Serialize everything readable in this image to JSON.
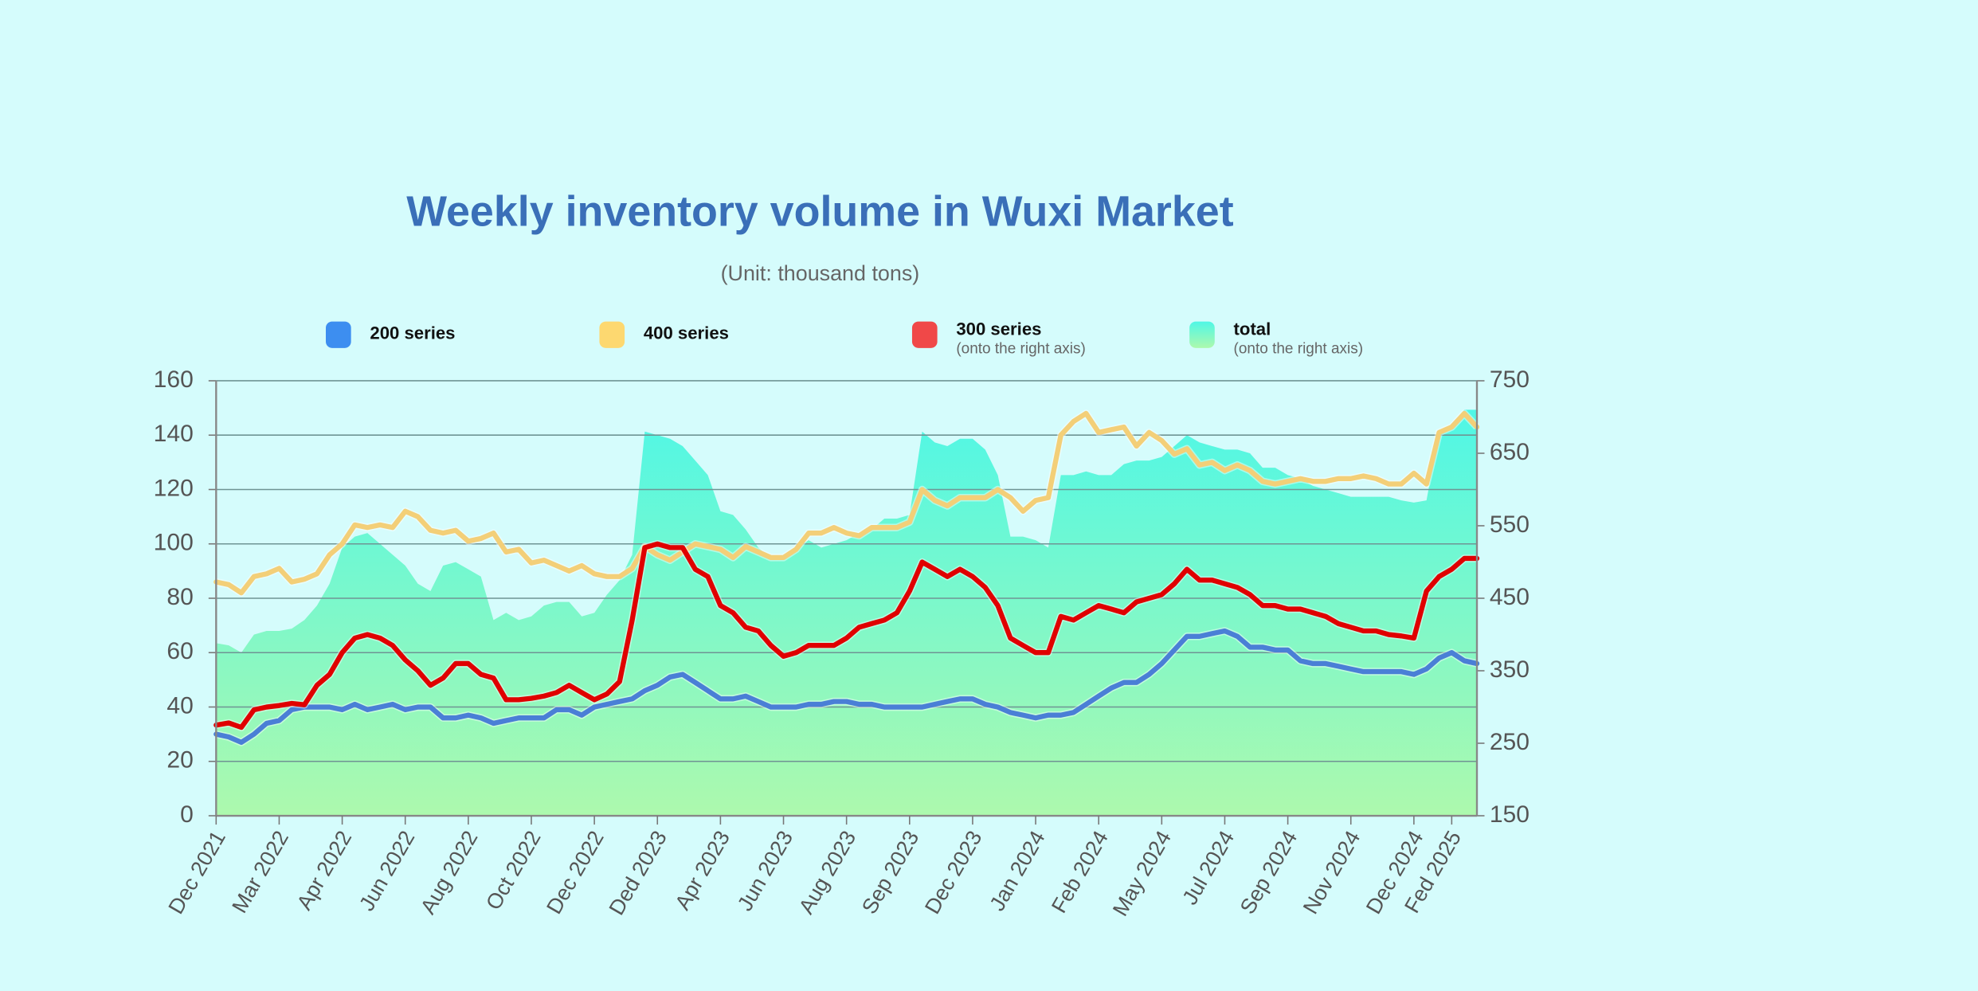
{
  "chart_data": {
    "type": "line",
    "title": "Weekly inventory volume in Wuxi Market",
    "subtitle": "(Unit: thousand tons)",
    "categories": [
      "Dec 2021",
      null,
      null,
      null,
      null,
      "Mar 2022",
      null,
      null,
      null,
      null,
      "Apr 2022",
      null,
      null,
      null,
      null,
      "Jun 2022",
      null,
      null,
      null,
      null,
      "Aug 2022",
      null,
      null,
      null,
      null,
      "Oct 2022",
      null,
      null,
      null,
      null,
      "Dec 2022",
      null,
      null,
      null,
      null,
      "Ded 2023",
      null,
      null,
      null,
      null,
      "Apr 2023",
      null,
      null,
      null,
      null,
      "Jun 2023",
      null,
      null,
      null,
      null,
      "Aug 2023",
      null,
      null,
      null,
      null,
      "Sep 2023",
      null,
      null,
      null,
      null,
      "Dec 2023",
      null,
      null,
      null,
      null,
      "Jan 2024",
      null,
      null,
      null,
      null,
      "Feb 2024",
      null,
      null,
      null,
      null,
      "May 2024",
      null,
      null,
      null,
      null,
      "Jul 2024",
      null,
      null,
      null,
      null,
      "Sep 2024",
      null,
      null,
      null,
      null,
      "Nov 2024",
      null,
      null,
      null,
      null,
      "Dec 2024",
      null,
      null,
      "Fed 2025",
      null,
      null
    ],
    "series": [
      {
        "name": "200 series",
        "color": "#3d8ef0",
        "line_color": "#4a7fd6",
        "values": [
          30,
          29,
          27,
          30,
          34,
          35,
          39,
          40,
          40,
          40,
          39,
          41,
          39,
          40,
          41,
          39,
          40,
          40,
          36,
          36,
          37,
          36,
          34,
          35,
          36,
          36,
          36,
          39,
          39,
          37,
          40,
          41,
          42,
          43,
          46,
          48,
          51,
          52,
          49,
          46,
          43,
          43,
          44,
          42,
          40,
          40,
          40,
          41,
          41,
          42,
          42,
          41,
          41,
          40,
          40,
          40,
          40,
          41,
          42,
          43,
          43,
          41,
          40,
          38,
          37,
          36,
          37,
          37,
          38,
          41,
          44,
          47,
          49,
          49,
          52,
          56,
          61,
          66,
          66,
          67,
          68,
          66,
          62,
          62,
          61,
          61,
          57,
          56,
          56,
          55,
          54,
          53,
          53,
          53,
          53,
          52,
          54,
          58,
          60,
          57,
          56
        ]
      },
      {
        "name": "400 series",
        "color": "#fdd870",
        "line_color": "#f3cf78",
        "values": [
          86,
          85,
          82,
          88,
          89,
          91,
          86,
          87,
          89,
          96,
          100,
          107,
          106,
          107,
          106,
          112,
          110,
          105,
          104,
          105,
          101,
          102,
          104,
          97,
          98,
          93,
          94,
          92,
          90,
          92,
          89,
          88,
          88,
          91,
          99,
          96,
          94,
          97,
          100,
          99,
          98,
          95,
          99,
          97,
          95,
          95,
          98,
          104,
          104,
          106,
          104,
          103,
          106,
          106,
          106,
          108,
          120,
          116,
          114,
          117,
          117,
          117,
          120,
          117,
          112,
          116,
          117,
          140,
          145,
          148,
          141,
          142,
          143,
          136,
          141,
          138,
          133,
          135,
          129,
          130,
          127,
          129,
          127,
          123,
          122,
          123,
          124,
          123,
          123,
          124,
          124,
          125,
          124,
          122,
          122,
          126,
          122,
          141,
          143,
          148,
          143
        ]
      },
      {
        "name": "300 series",
        "note": "(onto the right axis)",
        "axis": "y2",
        "color": "#f04848",
        "line_color": "#e00000",
        "values": [
          275,
          278,
          272,
          296,
          300,
          302,
          305,
          303,
          330,
          345,
          375,
          395,
          400,
          395,
          385,
          365,
          350,
          330,
          340,
          360,
          360,
          345,
          340,
          310,
          310,
          312,
          315,
          320,
          330,
          320,
          310,
          318,
          335,
          420,
          520,
          525,
          520,
          520,
          490,
          480,
          440,
          430,
          410,
          405,
          385,
          370,
          375,
          385,
          385,
          385,
          395,
          410,
          415,
          420,
          430,
          460,
          500,
          490,
          480,
          490,
          480,
          465,
          440,
          395,
          385,
          375,
          375,
          425,
          420,
          430,
          440,
          435,
          430,
          445,
          450,
          455,
          470,
          490,
          475,
          475,
          470,
          465,
          455,
          440,
          440,
          435,
          435,
          430,
          425,
          415,
          410,
          405,
          405,
          400,
          398,
          395,
          460,
          480,
          490,
          505,
          505
        ]
      },
      {
        "name": "total",
        "note": "(onto the right axis)",
        "axis": "y2",
        "style": "area",
        "color": "#5ff5e8",
        "values": [
          388,
          385,
          375,
          400,
          405,
          405,
          408,
          420,
          440,
          470,
          520,
          535,
          540,
          525,
          510,
          495,
          470,
          460,
          495,
          500,
          490,
          480,
          420,
          430,
          420,
          425,
          440,
          445,
          445,
          425,
          430,
          455,
          475,
          510,
          680,
          675,
          670,
          660,
          640,
          620,
          570,
          565,
          545,
          520,
          505,
          505,
          520,
          530,
          520,
          525,
          530,
          540,
          545,
          560,
          560,
          565,
          680,
          665,
          660,
          670,
          670,
          655,
          620,
          535,
          535,
          530,
          520,
          620,
          620,
          625,
          620,
          620,
          635,
          640,
          640,
          645,
          660,
          675,
          665,
          660,
          655,
          655,
          650,
          630,
          630,
          620,
          615,
          605,
          600,
          595,
          590,
          590,
          590,
          590,
          585,
          582,
          585,
          680,
          690,
          710,
          710
        ]
      }
    ],
    "ylim": [
      0,
      160
    ],
    "yticks": [
      0,
      20,
      40,
      60,
      80,
      100,
      120,
      140,
      160
    ],
    "y2lim": [
      150,
      750
    ],
    "y2ticks": [
      150,
      250,
      350,
      450,
      550,
      650,
      750
    ],
    "grid": true
  }
}
